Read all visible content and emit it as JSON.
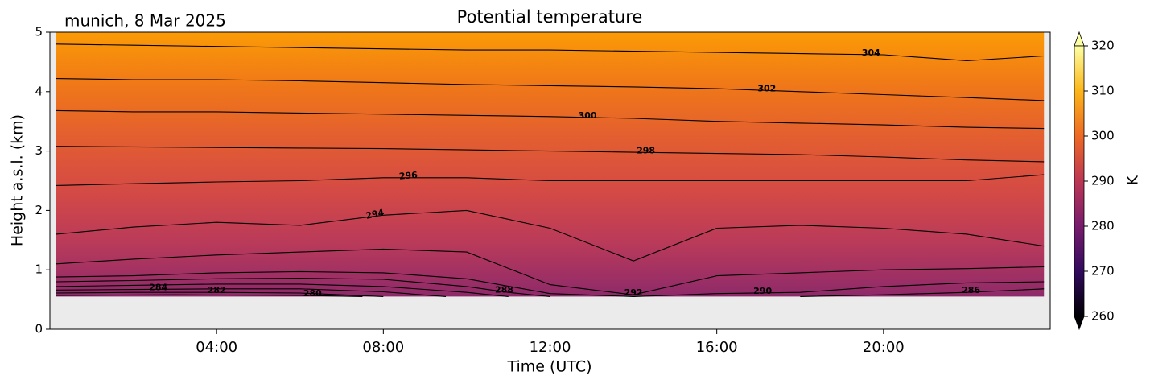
{
  "chart_data": {
    "type": "contour",
    "title": "Potential temperature",
    "subtitle": "munich, 8 Mar 2025",
    "x_label": "Time (UTC)",
    "y_label": "Height a.s.l. (km)",
    "xlim": [
      0,
      24
    ],
    "xticks": [
      {
        "value": 4,
        "label": "04:00"
      },
      {
        "value": 8,
        "label": "08:00"
      },
      {
        "value": 12,
        "label": "12:00"
      },
      {
        "value": 16,
        "label": "16:00"
      },
      {
        "value": 20,
        "label": "20:00"
      }
    ],
    "ylim": [
      0,
      5
    ],
    "yticks": [
      0,
      1,
      2,
      3,
      4,
      5
    ],
    "field_colors": [
      "#8e2a6a",
      "#b93a5a",
      "#d44a45",
      "#e35e30",
      "#f07818",
      "#fb9b06"
    ],
    "line_color": "#000000",
    "background": "#ebebeb",
    "contours": [
      {
        "level": 304,
        "x": [
          0.15,
          2,
          4,
          6,
          8,
          10,
          12,
          14,
          16,
          18,
          20,
          22,
          23.85
        ],
        "y": [
          4.8,
          4.78,
          4.76,
          4.74,
          4.72,
          4.7,
          4.7,
          4.68,
          4.66,
          4.64,
          4.62,
          4.52,
          4.6
        ]
      },
      {
        "level": 302,
        "x": [
          0.15,
          2,
          4,
          6,
          8,
          10,
          12,
          14,
          16,
          18,
          20,
          22,
          23.85
        ],
        "y": [
          4.22,
          4.2,
          4.2,
          4.18,
          4.15,
          4.12,
          4.1,
          4.08,
          4.05,
          4.0,
          3.95,
          3.9,
          3.85
        ]
      },
      {
        "level": 300,
        "x": [
          0.15,
          2,
          4,
          6,
          8,
          10,
          12,
          14,
          16,
          18,
          20,
          22,
          23.85
        ],
        "y": [
          3.68,
          3.66,
          3.66,
          3.64,
          3.62,
          3.6,
          3.58,
          3.55,
          3.5,
          3.47,
          3.44,
          3.4,
          3.38
        ]
      },
      {
        "level": 298,
        "x": [
          0.15,
          2,
          4,
          6,
          8,
          10,
          12,
          14,
          16,
          18,
          20,
          22,
          23.85
        ],
        "y": [
          3.08,
          3.07,
          3.06,
          3.05,
          3.04,
          3.02,
          3.0,
          2.98,
          2.96,
          2.94,
          2.9,
          2.85,
          2.82
        ]
      },
      {
        "level": 296,
        "x": [
          0.15,
          2,
          4,
          6,
          8,
          10,
          12,
          14,
          16,
          18,
          20,
          22,
          23.85
        ],
        "y": [
          2.42,
          2.45,
          2.48,
          2.5,
          2.55,
          2.55,
          2.5,
          2.5,
          2.5,
          2.5,
          2.5,
          2.5,
          2.6
        ]
      },
      {
        "level": 294,
        "x": [
          0.15,
          2,
          4,
          6,
          8,
          10,
          12,
          14,
          16,
          18,
          20,
          22,
          23.85
        ],
        "y": [
          1.6,
          1.72,
          1.8,
          1.75,
          1.92,
          2.0,
          1.7,
          1.15,
          1.7,
          1.75,
          1.7,
          1.6,
          1.4
        ]
      },
      {
        "level": 292,
        "x": [
          0.15,
          2,
          4,
          6,
          8,
          10,
          12,
          14,
          16,
          18,
          20,
          22,
          23.85
        ],
        "y": [
          1.1,
          1.18,
          1.25,
          1.3,
          1.35,
          1.3,
          0.75,
          0.58,
          0.9,
          0.95,
          1.0,
          1.02,
          1.05
        ]
      },
      {
        "level": 290,
        "x": [
          0.15,
          2,
          4,
          6,
          8,
          10,
          12,
          14,
          16,
          18,
          20,
          22,
          23.85
        ],
        "y": [
          0.88,
          0.9,
          0.95,
          0.97,
          0.95,
          0.85,
          0.6,
          0.55,
          0.6,
          0.62,
          0.72,
          0.78,
          0.8
        ]
      },
      {
        "level": 288,
        "x": [
          0.15,
          2,
          4,
          6,
          8,
          10,
          11,
          12
        ],
        "y": [
          0.8,
          0.82,
          0.85,
          0.86,
          0.84,
          0.72,
          0.62,
          0.55
        ]
      },
      {
        "level": 286,
        "x": [
          0.15,
          2,
          4,
          6,
          8,
          10,
          11,
          null,
          18,
          20,
          22,
          23.85
        ],
        "y": [
          0.72,
          0.74,
          0.76,
          0.76,
          0.72,
          0.62,
          0.55,
          null,
          0.55,
          0.58,
          0.62,
          0.68
        ]
      },
      {
        "level": 284,
        "x": [
          0.15,
          2,
          4,
          6,
          8,
          9.5
        ],
        "y": [
          0.66,
          0.67,
          0.68,
          0.68,
          0.63,
          0.55
        ]
      },
      {
        "level": 282,
        "x": [
          0.15,
          2,
          4,
          6,
          8
        ],
        "y": [
          0.61,
          0.62,
          0.62,
          0.61,
          0.55
        ]
      },
      {
        "level": 280,
        "x": [
          0.15,
          3,
          6,
          7.5
        ],
        "y": [
          0.57,
          0.58,
          0.57,
          0.55
        ]
      }
    ],
    "colorbar": {
      "label": "K",
      "lim": [
        260,
        320
      ],
      "ticks": [
        260,
        270,
        280,
        290,
        300,
        310,
        320
      ],
      "colormap": [
        "#000004",
        "#320a5e",
        "#781c6d",
        "#bc3754",
        "#ed6925",
        "#fbb61a",
        "#fcffa4"
      ]
    }
  }
}
